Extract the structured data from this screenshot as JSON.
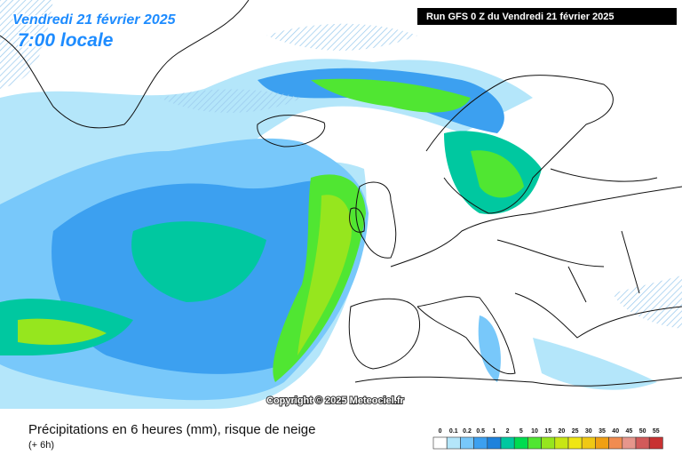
{
  "header": {
    "date": "Vendredi 21 février 2025",
    "time": "7:00 locale",
    "run": "Run GFS 0 Z du Vendredi 21 février 2025"
  },
  "copyright": "Copyright © 2025 Meteociel.fr",
  "footer": {
    "title": "Précipitations en 6 heures (mm), risque de neige",
    "subtitle": "(+ 6h)"
  },
  "legend": {
    "ticks": [
      0,
      0.1,
      0.2,
      0.5,
      1,
      2,
      5,
      10,
      15,
      20,
      25,
      30,
      35,
      40,
      45,
      50,
      55
    ],
    "colors": [
      "#ffffff",
      "#b4e6fa",
      "#78c8fa",
      "#3ca0f0",
      "#1e82dc",
      "#00c8a0",
      "#00dc50",
      "#50e632",
      "#96e61e",
      "#c8e614",
      "#f0e614",
      "#f0c814",
      "#f0a014",
      "#f08c50",
      "#e6968c",
      "#d25a5a",
      "#c83232"
    ]
  }
}
